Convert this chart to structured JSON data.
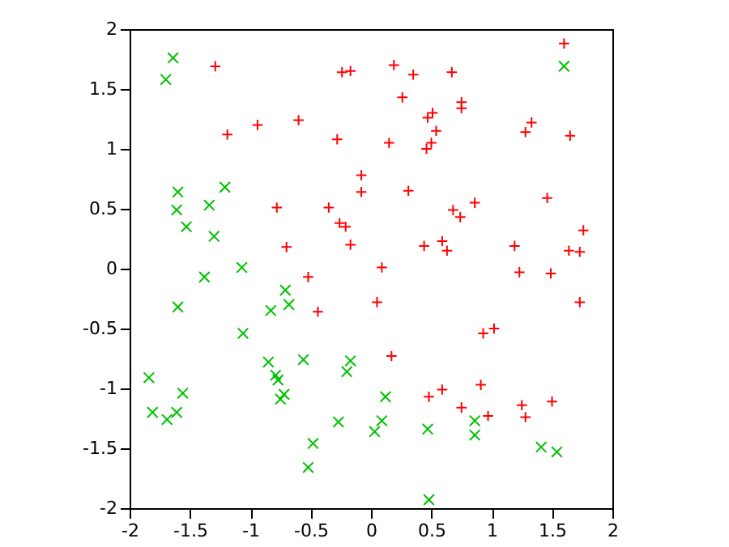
{
  "chart_data": {
    "type": "scatter",
    "xlim": [
      -2,
      2
    ],
    "ylim": [
      -2,
      2
    ],
    "xticks": [
      -2,
      -1.5,
      -1,
      -0.5,
      0,
      0.5,
      1,
      1.5,
      2
    ],
    "yticks": [
      -2,
      -1.5,
      -1,
      -0.5,
      0,
      0.5,
      1,
      1.5,
      2
    ],
    "grid": false,
    "series": [
      {
        "color": "#ff0000",
        "marker": "cross",
        "x": [
          -1.29,
          -1.19,
          -0.94,
          -0.6,
          -0.24,
          -0.17,
          0.19,
          0.35,
          0.67,
          0.26,
          0.75,
          0.75,
          0.51,
          0.47,
          0.54,
          0.5,
          0.46,
          0.15,
          1.28,
          1.33,
          1.65,
          1.6,
          0.31,
          0.68,
          0.74,
          0.86,
          1.46,
          1.76,
          1.64,
          1.73,
          0.44,
          0.59,
          0.63,
          1.19,
          0.09,
          1.23,
          1.49,
          -0.28,
          -0.08,
          -0.08,
          -0.78,
          -0.35,
          -0.26,
          -0.21,
          -0.17,
          -0.7,
          -0.52,
          -0.44,
          0.05,
          1.73,
          0.93,
          1.02,
          0.17,
          0.59,
          0.48,
          0.91,
          0.75,
          0.97,
          1.25,
          1.28,
          1.5
        ],
        "values": [
          1.69,
          1.12,
          1.2,
          1.24,
          1.64,
          1.65,
          1.7,
          1.62,
          1.64,
          1.43,
          1.39,
          1.34,
          1.3,
          1.26,
          1.15,
          1.05,
          1.0,
          1.05,
          1.14,
          1.22,
          1.11,
          1.88,
          0.65,
          0.49,
          0.43,
          0.55,
          0.59,
          0.32,
          0.15,
          0.14,
          0.19,
          0.23,
          0.15,
          0.19,
          0.01,
          -0.03,
          -0.04,
          1.08,
          0.78,
          0.64,
          0.51,
          0.51,
          0.38,
          0.35,
          0.2,
          0.18,
          -0.07,
          -0.36,
          -0.28,
          -0.28,
          -0.54,
          -0.5,
          -0.73,
          -1.01,
          -1.07,
          -0.97,
          -1.16,
          -1.23,
          -1.14,
          -1.24,
          -1.11
        ]
      },
      {
        "color": "#00c000",
        "marker": "x",
        "x": [
          -1.64,
          -1.7,
          1.6,
          -1.6,
          -1.21,
          -1.34,
          -1.61,
          -1.53,
          -1.3,
          -1.07,
          -1.38,
          -0.71,
          -0.68,
          -0.83,
          -1.6,
          -1.06,
          -0.85,
          -0.56,
          -0.17,
          -0.2,
          -0.79,
          -0.77,
          -0.72,
          -0.75,
          -1.84,
          -1.56,
          -1.81,
          -1.69,
          -1.61,
          -0.27,
          -0.48,
          -0.52,
          0.03,
          0.12,
          0.09,
          0.47,
          0.86,
          0.86,
          1.41,
          1.54,
          0.48
        ],
        "values": [
          1.76,
          1.58,
          1.69,
          0.64,
          0.68,
          0.53,
          0.49,
          0.35,
          0.27,
          0.01,
          -0.07,
          -0.18,
          -0.3,
          -0.35,
          -0.32,
          -0.54,
          -0.78,
          -0.76,
          -0.77,
          -0.86,
          -0.89,
          -0.93,
          -1.05,
          -1.09,
          -0.91,
          -1.04,
          -1.2,
          -1.26,
          -1.2,
          -1.28,
          -1.46,
          -1.66,
          -1.36,
          -1.07,
          -1.27,
          -1.34,
          -1.27,
          -1.39,
          -1.49,
          -1.53,
          -1.93
        ]
      }
    ]
  }
}
